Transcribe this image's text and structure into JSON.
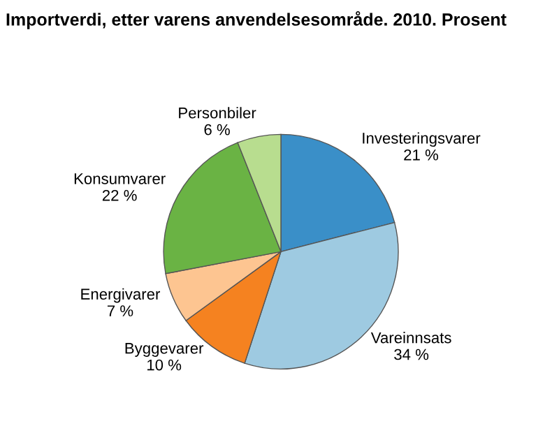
{
  "chart_data": {
    "type": "pie",
    "title": "Importverdi, etter varens anvendelsesområde. 2010. Prosent",
    "categories": [
      "Investeringsvarer",
      "Vareinnsats",
      "Byggevarer",
      "Energivarer",
      "Konsumvarer",
      "Personbiler"
    ],
    "values": [
      21,
      34,
      10,
      7,
      22,
      6
    ],
    "value_labels": [
      "21 %",
      "34 %",
      "10 %",
      "7 %",
      "22 %",
      "6 %"
    ],
    "colors": [
      "#3a8fc8",
      "#9ecae1",
      "#f58220",
      "#fdc591",
      "#6ab344",
      "#b8dd8f"
    ]
  }
}
